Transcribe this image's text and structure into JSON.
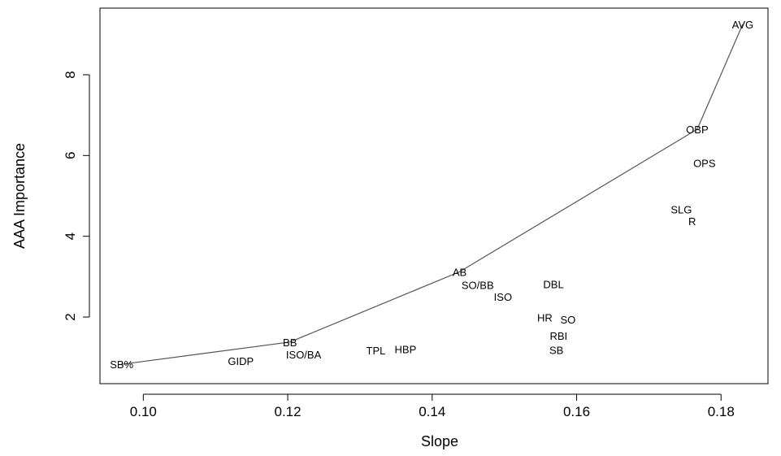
{
  "chart_data": {
    "type": "scatter",
    "title": "",
    "xlabel": "Slope",
    "ylabel": "AAA Importance",
    "xlim": [
      0.094,
      0.1865
    ],
    "ylim": [
      0.35,
      9.65
    ],
    "x_ticks": [
      0.1,
      0.12,
      0.14,
      0.16,
      0.18
    ],
    "x_tick_labels": [
      "0.10",
      "0.12",
      "0.14",
      "0.16",
      "0.18"
    ],
    "y_ticks": [
      2,
      4,
      6,
      8
    ],
    "y_tick_labels": [
      "2",
      "4",
      "6",
      "8"
    ],
    "grid": false,
    "points": [
      {
        "label": "AVG",
        "x": 0.183,
        "y": 9.25
      },
      {
        "label": "OBP",
        "x": 0.1767,
        "y": 6.65
      },
      {
        "label": "OPS",
        "x": 0.1777,
        "y": 5.82
      },
      {
        "label": "SLG",
        "x": 0.1745,
        "y": 4.67
      },
      {
        "label": "R",
        "x": 0.176,
        "y": 4.38
      },
      {
        "label": "AB",
        "x": 0.1438,
        "y": 3.12
      },
      {
        "label": "SO/BB",
        "x": 0.1463,
        "y": 2.8
      },
      {
        "label": "DBL",
        "x": 0.1568,
        "y": 2.82
      },
      {
        "label": "ISO",
        "x": 0.1498,
        "y": 2.5
      },
      {
        "label": "HR",
        "x": 0.1556,
        "y": 1.99
      },
      {
        "label": "SO",
        "x": 0.1588,
        "y": 1.94
      },
      {
        "label": "RBI",
        "x": 0.1575,
        "y": 1.54
      },
      {
        "label": "SB",
        "x": 0.1572,
        "y": 1.19
      },
      {
        "label": "TPL",
        "x": 0.1322,
        "y": 1.18
      },
      {
        "label": "HBP",
        "x": 0.1363,
        "y": 1.21
      },
      {
        "label": "BB",
        "x": 0.1203,
        "y": 1.38
      },
      {
        "label": "ISO/BA",
        "x": 0.1222,
        "y": 1.07
      },
      {
        "label": "GIDP",
        "x": 0.1135,
        "y": 0.91
      },
      {
        "label": "SB%",
        "x": 0.097,
        "y": 0.83
      }
    ],
    "frontier": {
      "x": [
        0.097,
        0.1203,
        0.1438,
        0.1767,
        0.183
      ],
      "y": [
        0.83,
        1.38,
        3.12,
        6.65,
        9.25
      ]
    }
  }
}
